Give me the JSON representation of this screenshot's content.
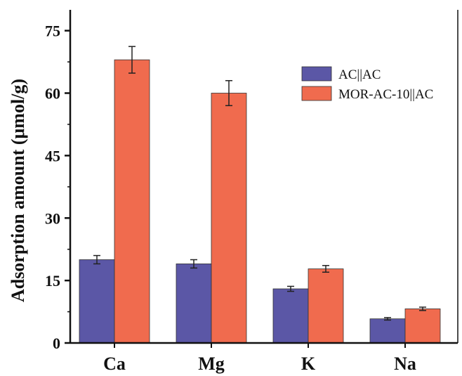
{
  "chart_data": {
    "type": "bar",
    "title": "",
    "xlabel": "",
    "ylabel": "Adsorption amount (μmol/g)",
    "categories": [
      "Ca",
      "Mg",
      "K",
      "Na"
    ],
    "ylim": [
      0,
      80
    ],
    "yticks": [
      0,
      15,
      30,
      45,
      60,
      75
    ],
    "legend_position": "top-right",
    "grid": false,
    "series": [
      {
        "name": "AC||AC",
        "color": "#5b57a6",
        "values": [
          20.0,
          19.0,
          13.0,
          5.8
        ],
        "errors": [
          1.0,
          1.0,
          0.6,
          0.3
        ]
      },
      {
        "name": "MOR-AC-10||AC",
        "color": "#f06b4e",
        "values": [
          68.0,
          60.0,
          17.8,
          8.2
        ],
        "errors": [
          3.2,
          3.0,
          0.8,
          0.4
        ]
      }
    ]
  }
}
